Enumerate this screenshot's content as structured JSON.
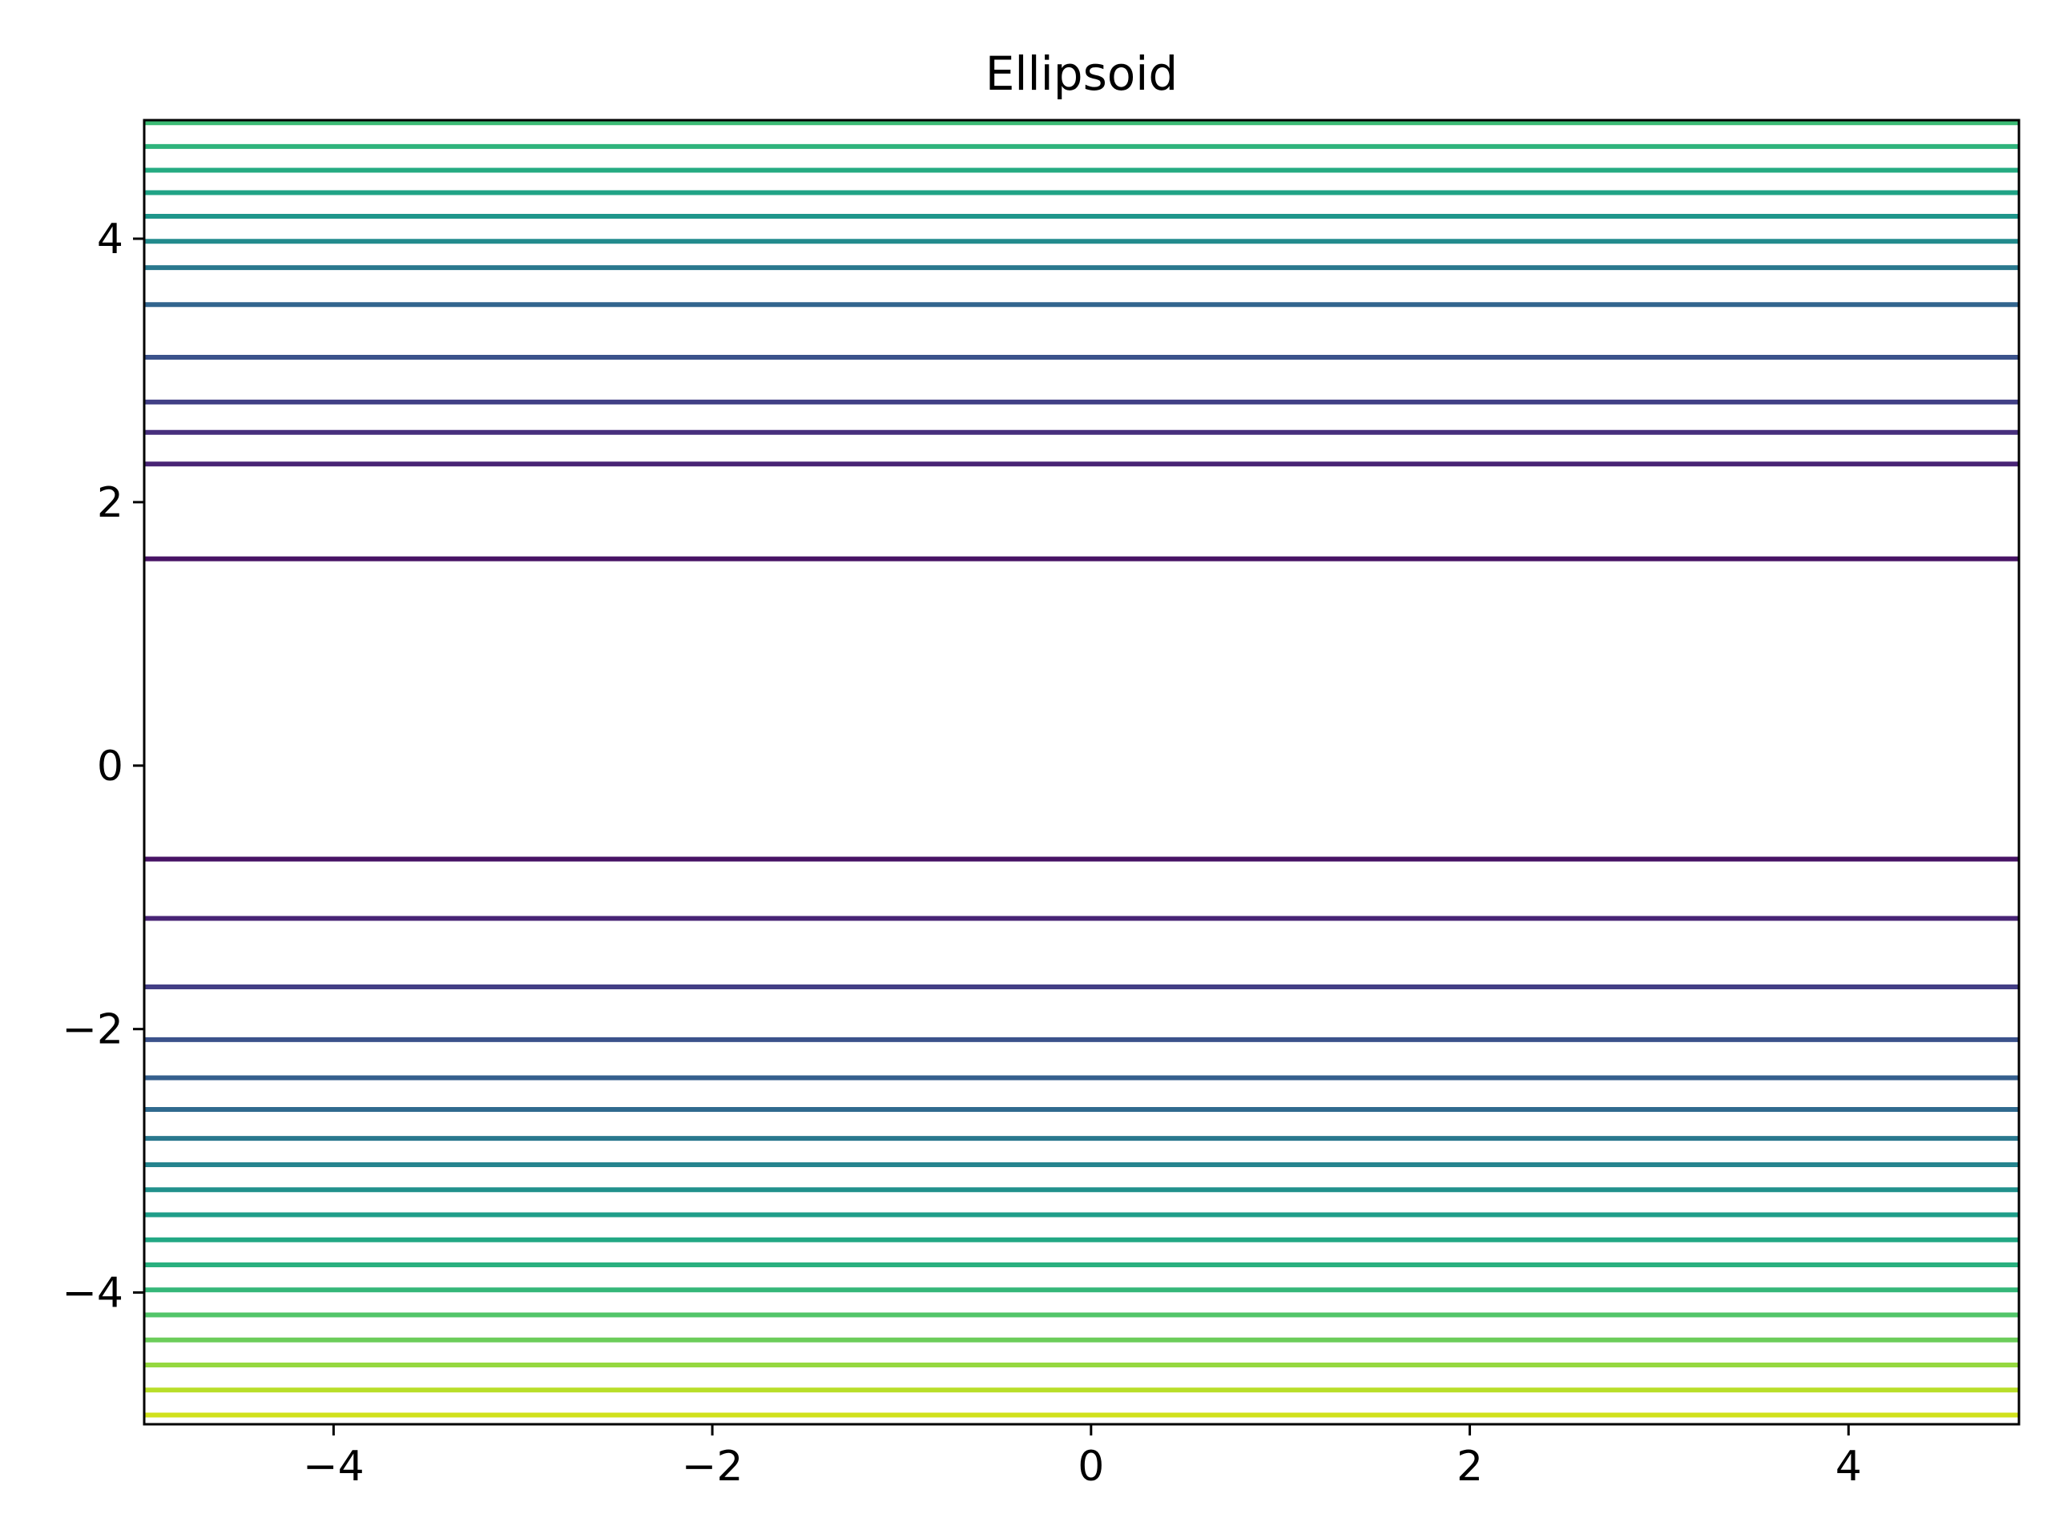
{
  "chart_data": {
    "type": "contour",
    "title": "Ellipsoid",
    "xlabel": "",
    "ylabel": "",
    "xlim": [
      -5.0,
      4.9
    ],
    "ylim": [
      -5.0,
      4.9
    ],
    "x_ticks": [
      -4,
      -2,
      0,
      2,
      4
    ],
    "y_ticks": [
      -4,
      -2,
      0,
      2,
      4
    ],
    "x_tick_labels": [
      "−4",
      "−2",
      "0",
      "2",
      "4"
    ],
    "y_tick_labels": [
      "−4",
      "−2",
      "0",
      "2",
      "4"
    ],
    "grid": false,
    "colormap": "viridis",
    "contour_levels_y": [
      4.88,
      4.7,
      4.52,
      4.35,
      4.17,
      3.98,
      3.78,
      3.5,
      3.1,
      2.76,
      2.53,
      2.29,
      1.57,
      -0.71,
      -1.16,
      -1.68,
      -2.08,
      -2.37,
      -2.61,
      -2.83,
      -3.03,
      -3.22,
      -3.41,
      -3.6,
      -3.79,
      -3.98,
      -4.17,
      -4.36,
      -4.55,
      -4.74,
      -4.93
    ],
    "contour_colors": [
      "#3cbb75",
      "#2fb47c",
      "#25ab82",
      "#20a386",
      "#1f968b",
      "#228b8d",
      "#2a788e",
      "#32658e",
      "#3b528b",
      "#424086",
      "#472f7d",
      "#482475",
      "#471365",
      "#471365",
      "#482475",
      "#433e85",
      "#3b528b",
      "#355f8d",
      "#306a8e",
      "#2a788e",
      "#25848e",
      "#21918c",
      "#1f9e89",
      "#22a884",
      "#2ab07f",
      "#35b779",
      "#52c569",
      "#6ccd5a",
      "#95d840",
      "#b8de29",
      "#d0e11c"
    ]
  }
}
